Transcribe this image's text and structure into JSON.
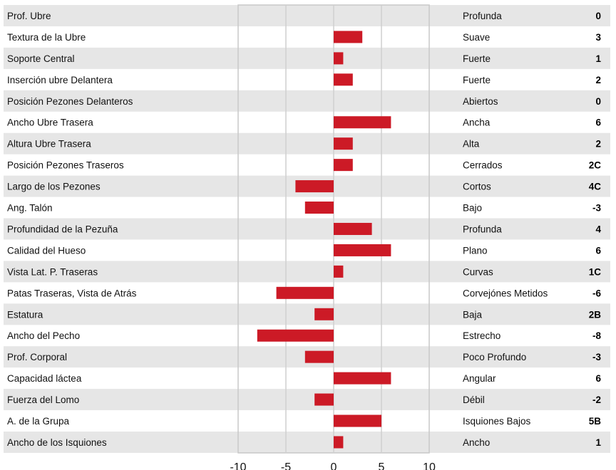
{
  "chart_data": {
    "type": "bar",
    "orientation": "horizontal",
    "title": "",
    "xlabel": "",
    "ylabel": "",
    "xlim": [
      -10,
      10
    ],
    "xticks": [
      "-10",
      "-5",
      "0",
      "5",
      "10"
    ],
    "grid": true,
    "bar_color": "#cc1a26",
    "row_band_color": "#e6e6e6",
    "rows": [
      {
        "trait": "Prof. Ubre",
        "descriptor": "Profunda",
        "score": "0",
        "value": 0
      },
      {
        "trait": "Textura de la Ubre",
        "descriptor": "Suave",
        "score": "3",
        "value": 3
      },
      {
        "trait": "Soporte Central",
        "descriptor": "Fuerte",
        "score": "1",
        "value": 1
      },
      {
        "trait": "Inserción ubre Delantera",
        "descriptor": "Fuerte",
        "score": "2",
        "value": 2
      },
      {
        "trait": "Posición Pezones Delanteros",
        "descriptor": "Abiertos",
        "score": "0",
        "value": 0
      },
      {
        "trait": "Ancho Ubre Trasera",
        "descriptor": "Ancha",
        "score": "6",
        "value": 6
      },
      {
        "trait": "Altura Ubre Trasera",
        "descriptor": "Alta",
        "score": "2",
        "value": 2
      },
      {
        "trait": "Posición Pezones Traseros",
        "descriptor": "Cerrados",
        "score": "2C",
        "value": 2
      },
      {
        "trait": "Largo de los Pezones",
        "descriptor": "Cortos",
        "score": "4C",
        "value": -4
      },
      {
        "trait": "Ang. Talón",
        "descriptor": "Bajo",
        "score": "-3",
        "value": -3
      },
      {
        "trait": "Profundidad de la Pezuña",
        "descriptor": "Profunda",
        "score": "4",
        "value": 4
      },
      {
        "trait": "Calidad del Hueso",
        "descriptor": "Plano",
        "score": "6",
        "value": 6
      },
      {
        "trait": "Vista Lat. P. Traseras",
        "descriptor": "Curvas",
        "score": "1C",
        "value": 1
      },
      {
        "trait": "Patas Traseras, Vista de Atrás",
        "descriptor": "Corvejónes Metidos",
        "score": "-6",
        "value": -6
      },
      {
        "trait": "Estatura",
        "descriptor": "Baja",
        "score": "2B",
        "value": -2
      },
      {
        "trait": "Ancho del Pecho",
        "descriptor": "Estrecho",
        "score": "-8",
        "value": -8
      },
      {
        "trait": "Prof. Corporal",
        "descriptor": "Poco Profundo",
        "score": "-3",
        "value": -3
      },
      {
        "trait": "Capacidad láctea",
        "descriptor": "Angular",
        "score": "6",
        "value": 6
      },
      {
        "trait": "Fuerza del Lomo",
        "descriptor": "Débil",
        "score": "-2",
        "value": -2
      },
      {
        "trait": "A. de la Grupa",
        "descriptor": "Isquiones Bajos",
        "score": "5B",
        "value": 5
      },
      {
        "trait": "Ancho de los Isquiones",
        "descriptor": "Ancho",
        "score": "1",
        "value": 1
      }
    ]
  }
}
